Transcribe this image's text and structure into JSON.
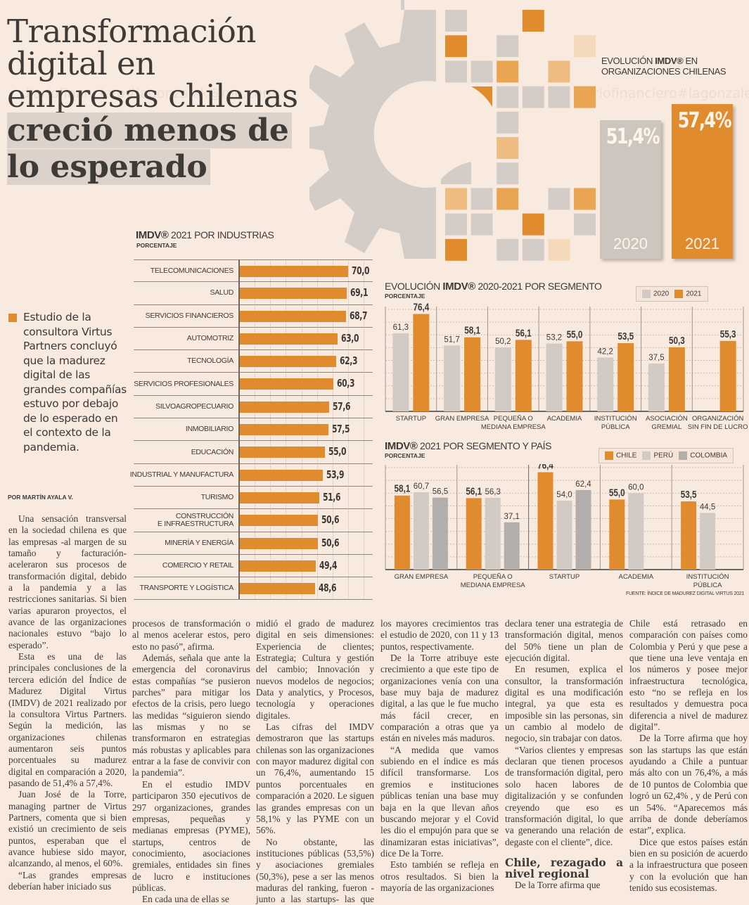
{
  "headline": {
    "light_lines": [
      "Transformación",
      "digital en",
      "empresas chilenas"
    ],
    "bold_lines": [
      "creció menos de",
      "lo esperado"
    ]
  },
  "deck": "Estudio de la consultora Virtus Partners concluyó que la madurez digital de las grandes compañías estuvo por debajo de lo esperado en el contexto de la pandemia.",
  "byline": "POR MARTÍN AYALA V.",
  "watermark": "diariofinanciero#lagonzalek@me.com",
  "colors": {
    "orange": "#e08c2e",
    "light_gray": "#d2cac4",
    "mid_gray": "#b2aeab",
    "background": "#f8eadf",
    "text": "#3d3a38"
  },
  "evolution": {
    "title_prefix": "EVOLUCIÓN ",
    "title_bold": "IMDV®",
    "title_suffix": " EN",
    "title_line2": "ORGANIZACIONES CHILENAS",
    "bars": [
      {
        "year": "2020",
        "label": "51,4%",
        "value": 51.4,
        "color": "#cdc6bf"
      },
      {
        "year": "2021",
        "label": "57,4%",
        "value": 57.4,
        "color": "#e08c2e"
      }
    ]
  },
  "industries": {
    "title_bold": "IMDV®",
    "title_rest": " 2021 POR INDUSTRIAS",
    "subtitle": "PORCENTAJE",
    "rows": [
      {
        "label": "TELECOMUNICACIONES",
        "value": 70.0,
        "text": "70,0"
      },
      {
        "label": "SALUD",
        "value": 69.1,
        "text": "69,1"
      },
      {
        "label": "SERVICIOS FINANCIEROS",
        "value": 68.7,
        "text": "68,7"
      },
      {
        "label": "AUTOMOTRIZ",
        "value": 63.0,
        "text": "63,0"
      },
      {
        "label": "TECNOLOGÍA",
        "value": 62.3,
        "text": "62,3"
      },
      {
        "label": "SERVICIOS PROFESIONALES",
        "value": 60.3,
        "text": "60,3"
      },
      {
        "label": "SILVOAGROPECUARIO",
        "value": 57.6,
        "text": "57,6"
      },
      {
        "label": "INMOBILIARIO",
        "value": 57.5,
        "text": "57,5"
      },
      {
        "label": "EDUCACIÓN",
        "value": 55.0,
        "text": "55,0"
      },
      {
        "label": "INDUSTRIAL Y MANUFACTURA",
        "value": 53.9,
        "text": "53,9"
      },
      {
        "label": "TURISMO",
        "value": 51.6,
        "text": "51,6"
      },
      {
        "label": "CONSTRUCCIÓN\nE INFRAESTRUCTURA",
        "value": 50.6,
        "text": "50,6"
      },
      {
        "label": "MINERÍA Y ENERGÍA",
        "value": 50.6,
        "text": "50,6"
      },
      {
        "label": "COMERCIO Y RETAIL",
        "value": 49.4,
        "text": "49,4"
      },
      {
        "label": "TRANSPORTE Y LOGÍSTICA",
        "value": 48.6,
        "text": "48,6"
      }
    ]
  },
  "chart_data": [
    {
      "type": "bar",
      "orientation": "horizontal",
      "title": "IMDV® 2021 POR INDUSTRIAS",
      "subtitle": "PORCENTAJE",
      "categories": [
        "TELECOMUNICACIONES",
        "SALUD",
        "SERVICIOS FINANCIEROS",
        "AUTOMOTRIZ",
        "TECNOLOGÍA",
        "SERVICIOS PROFESIONALES",
        "SILVOAGROPECUARIO",
        "INMOBILIARIO",
        "EDUCACIÓN",
        "INDUSTRIAL Y MANUFACTURA",
        "TURISMO",
        "CONSTRUCCIÓN E INFRAESTRUCTURA",
        "MINERÍA Y ENERGÍA",
        "COMERCIO Y RETAIL",
        "TRANSPORTE Y LOGÍSTICA"
      ],
      "values": [
        70.0,
        69.1,
        68.7,
        63.0,
        62.3,
        60.3,
        57.6,
        57.5,
        55.0,
        53.9,
        51.6,
        50.6,
        50.6,
        49.4,
        48.6
      ],
      "xlim": [
        0,
        80
      ],
      "grid": true
    },
    {
      "type": "bar",
      "title": "EVOLUCIÓN IMDV® 2020-2021 POR SEGMENTO",
      "subtitle": "PORCENTAJE",
      "categories": [
        "STARTUP",
        "GRAN EMPRESA",
        "PEQUEÑA O\nMEDIANA EMPRESA",
        "ACADEMIA",
        "INSTITUCIÓN\nPÚBLICA",
        "ASOCIACIÓN\nGREMIAL",
        "ORGANIZACIÓN\nSIN FIN DE LUCRO"
      ],
      "series": [
        {
          "name": "2020",
          "color": "#d2cac4",
          "values": [
            61.3,
            51.7,
            50.2,
            53.2,
            42.2,
            37.5,
            null
          ],
          "labels": [
            "61,3",
            "51,7",
            "50,2",
            "53,2",
            "42,2",
            "37,5",
            ""
          ]
        },
        {
          "name": "2021",
          "color": "#e08c2e",
          "values": [
            76.4,
            58.1,
            56.1,
            55.0,
            53.5,
            50.3,
            55.3
          ],
          "labels": [
            "76,4",
            "58,1",
            "56,1",
            "55,0",
            "53,5",
            "50,3",
            "55,3"
          ]
        }
      ],
      "ylim": [
        0,
        80
      ],
      "grid": true,
      "legend": "top-right"
    },
    {
      "type": "bar",
      "title": "IMDV® 2021 POR SEGMENTO Y PAÍS",
      "subtitle": "PORCENTAJE",
      "categories": [
        "GRAN EMPRESA",
        "PEQUEÑA O\nMEDIANA EMPRESA",
        "STARTUP",
        "ACADEMIA",
        "INSTITUCIÓN\nPÚBLICA"
      ],
      "series": [
        {
          "name": "CHILE",
          "color": "#e08c2e",
          "values": [
            58.1,
            56.1,
            76.4,
            55.0,
            53.5
          ],
          "labels": [
            "58,1",
            "56,1",
            "76,4",
            "55,0",
            "53,5"
          ]
        },
        {
          "name": "PERÚ",
          "color": "#d2cac4",
          "values": [
            60.7,
            56.3,
            54.0,
            60.0,
            44.5
          ],
          "labels": [
            "60,7",
            "56,3",
            "54,0",
            "60,0",
            "44,5"
          ]
        },
        {
          "name": "COLOMBIA",
          "color": "#b2aeab",
          "values": [
            56.5,
            37.1,
            62.4,
            null,
            null
          ],
          "labels": [
            "56,5",
            "37,1",
            "62,4",
            "",
            ""
          ]
        }
      ],
      "ylim": [
        0,
        80
      ],
      "grid": true,
      "legend": "top-right",
      "source": "FUENTE: ÍNDICE DE MADUREZ DIGITAL VIRTUS 2021"
    }
  ],
  "segment_chart": {
    "title_prefix": "EVOLUCIÓN ",
    "title_bold": "IMDV®",
    "title_suffix": " 2020-2021 POR SEGMENTO",
    "subtitle": "PORCENTAJE",
    "legend": [
      "2020",
      "2021"
    ]
  },
  "country_chart": {
    "title_bold": "IMDV®",
    "title_rest": " 2021 POR SEGMENTO Y PAÍS",
    "subtitle": "PORCENTAJE",
    "legend": [
      "CHILE",
      "PERÚ",
      "COLOMBIA"
    ],
    "source": "FUENTE: ÍNDICE DE MADUREZ DIGITAL VIRTUS 2021"
  },
  "article": {
    "col1": [
      "Una sensación transversal en la sociedad chilena es que las empresas -al margen de su tamaño y facturación- aceleraron sus procesos de transformación digital, debido a la pandemia y a las restricciones sanitarias. Si bien varias apuraron proyectos, el avance de las organizaciones nacionales estuvo “bajo lo esperado”.",
      "Esta es una de las principales conclusiones de la tercera edición del Índice de Madurez Digital Virtus (IMDV) de 2021 realizado por la consultora Virtus Partners. Según la medición, las organizaciones chilenas aumentaron seis puntos porcentuales su madurez digital en comparación a 2020, pasando de 51,4% a 57,4%.",
      "Juan José de la Torre, managing partner de Virtus Partners, comenta que si bien existió un crecimiento de seis puntos, esperaban que el avance hubiese sido mayor, alcanzando, al menos, el 60%.",
      "“Las grandes empresas deberían haber iniciado sus"
    ],
    "col2": [
      "procesos de transformación o al menos acelerar estos, pero esto no pasó”, afirma.",
      "Además, señala que ante la emergencia del coronavirus estas compañías “se pusieron parches” para mitigar los efectos de la crisis, pero luego las medidas “siguieron siendo las mismas y no se transformaron en estrategias más robustas y aplicables para entrar a la fase de convivir con la pandemia”.",
      "En el estudio IMDV participaron 350 ejecutivos de 297 organizaciones, grandes empresas, pequeñas y medianas empresas (PYME), startups, centros de conocimiento, asociaciones gremiales, entidades sin fines de lucro e instituciones públicas.",
      "En cada una de ellas se"
    ],
    "col3": [
      "midió el grado de madurez digital en seis dimensiones: Experiencia de clientes; Estrategia; Cultura y gestión del cambio; Innovación y nuevos modelos de negocios; Data y analytics, y Procesos, tecnología y operaciones digitales.",
      "Las cifras del IMDV demostraron que las startups chilenas son las organizaciones con mayor madurez digital con un 76,4%, aumentando 15 puntos porcentuales en comparación a 2020. Le siguen las grandes empresas con un 58,1% y las PYME con un 56%.",
      "No obstante, las instituciones públicas (53,5%) y asociaciones gremiales (50,3%), pese a ser las menos maduras del ranking, fueron -junto a las startups- las que anotaron"
    ],
    "col4": [
      "los mayores crecimientos tras el estudio de 2020, con 11 y 13 puntos, respectivamente.",
      "De la Torre atribuye este crecimiento a que este tipo de organizaciones venía con una base muy baja de madurez digital, a las que le fue mucho más fácil crecer, en comparación a otras que ya están en niveles más maduros.",
      "“A medida que vamos subiendo en el índice es más difícil transformarse. Los gremios e instituciones públicas tenían una base muy baja en la que llevan años buscando mejorar y el Covid les dio el empujón para que se dinamizaran estas iniciativas”, dice De la Torre.",
      "Esto también se refleja en otros resultados. Si bien la mayoría de las organizaciones"
    ],
    "col5": [
      "declara tener una estrategia de transformación digital, menos del 50% tiene un plan de ejecución digital.",
      "En resumen, explica el consultor, la transformación digital es una modificación integral, ya que esta es imposible sin las personas, sin un cambio al modelo de negocio, sin trabajar con datos.",
      "“Varios clientes y empresas declaran que tienen procesos de transformación digital, pero solo hacen labores de digitalización y se confunden creyendo que eso es transformación digital, lo que va generando una relación de degaste con el cliente”, dice."
    ],
    "subhead": "Chile, rezagado a nivel regional",
    "col5_after": "De la Torre afirma que",
    "col6": [
      "Chile está retrasado en comparación con países como Colombia y Perú y que pese a que tiene una leve ventaja en los números y posee mejor infraestructura tecnológica, esto “no se refleja en los resultados y demuestra poca diferencia a nivel de madurez digital”.",
      "De la Torre afirma que hoy son las startups las que están ayudando a Chile a puntuar más alto con un 76,4%, a más de 10 puntos de Colombia que logró un 62,4% , y de Perú con un 54%. “Aparecemos más arriba de donde deberíamos estar”, explica.",
      "Dice que estos países están bien en su posición de acuerdo a la infraestructura que poseen y con la evolución que han tenido sus ecosistemas."
    ]
  }
}
